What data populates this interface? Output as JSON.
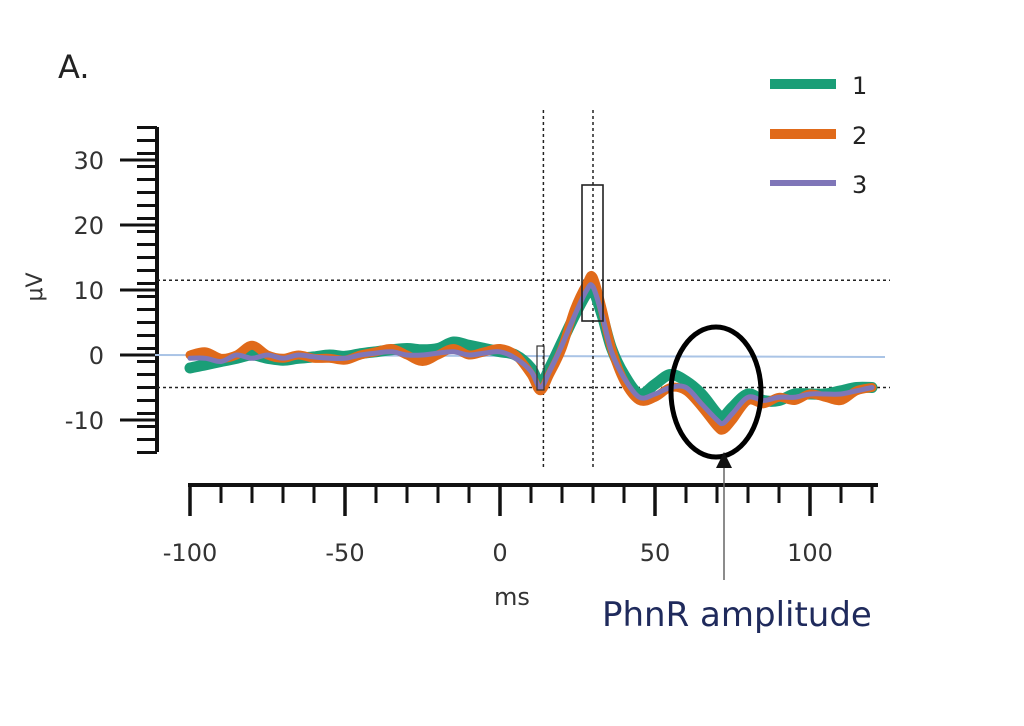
{
  "panel_label": "A.",
  "annotation": {
    "text": "PhnR amplitude",
    "color": "#1f2a5c"
  },
  "legend": [
    {
      "label": "1",
      "color": "#1a9e77"
    },
    {
      "label": "2",
      "color": "#e06a1a"
    },
    {
      "label": "3",
      "color": "#7f76b8"
    }
  ],
  "chart_data": {
    "type": "line",
    "xlabel": "ms",
    "ylabel": "μV",
    "xlim": [
      -100,
      120
    ],
    "ylim": [
      -15,
      35
    ],
    "x_ticks": [
      -100,
      -50,
      0,
      50,
      100
    ],
    "y_ticks": [
      30,
      20,
      10,
      0,
      -10
    ],
    "reference_lines": {
      "vertical_ms": [
        14,
        30
      ],
      "horizontal_uV": [
        11.5,
        -5
      ]
    },
    "baseline_color": "#aac4e6",
    "series": [
      {
        "name": "1",
        "color": "#1a9e77",
        "points": [
          [
            -100,
            -2
          ],
          [
            -95,
            -1.5
          ],
          [
            -90,
            -1
          ],
          [
            -85,
            -0.5
          ],
          [
            -80,
            0
          ],
          [
            -75,
            -0.5
          ],
          [
            -70,
            -0.8
          ],
          [
            -65,
            -0.5
          ],
          [
            -60,
            -0.3
          ],
          [
            -55,
            0
          ],
          [
            -50,
            -0.2
          ],
          [
            -45,
            0.2
          ],
          [
            -40,
            0.5
          ],
          [
            -35,
            0.8
          ],
          [
            -30,
            1
          ],
          [
            -25,
            0.8
          ],
          [
            -20,
            1
          ],
          [
            -15,
            2
          ],
          [
            -10,
            1.5
          ],
          [
            -5,
            1
          ],
          [
            0,
            0.5
          ],
          [
            5,
            0
          ],
          [
            10,
            -2
          ],
          [
            13,
            -4.5
          ],
          [
            16,
            -2
          ],
          [
            20,
            2
          ],
          [
            24,
            6
          ],
          [
            28,
            9.5
          ],
          [
            30,
            10
          ],
          [
            33,
            6
          ],
          [
            36,
            1
          ],
          [
            40,
            -3
          ],
          [
            45,
            -6
          ],
          [
            50,
            -4.5
          ],
          [
            55,
            -3
          ],
          [
            60,
            -4
          ],
          [
            65,
            -6
          ],
          [
            70,
            -9
          ],
          [
            72,
            -9.5
          ],
          [
            75,
            -8
          ],
          [
            80,
            -6
          ],
          [
            85,
            -7
          ],
          [
            90,
            -7
          ],
          [
            95,
            -6
          ],
          [
            100,
            -6
          ],
          [
            105,
            -6
          ],
          [
            110,
            -5.5
          ],
          [
            115,
            -5
          ],
          [
            120,
            -5
          ]
        ]
      },
      {
        "name": "2",
        "color": "#e06a1a",
        "points": [
          [
            -100,
            0
          ],
          [
            -95,
            0.5
          ],
          [
            -90,
            -0.5
          ],
          [
            -85,
            0
          ],
          [
            -80,
            1.5
          ],
          [
            -75,
            0
          ],
          [
            -70,
            -0.5
          ],
          [
            -65,
            0
          ],
          [
            -60,
            -0.5
          ],
          [
            -55,
            -0.5
          ],
          [
            -50,
            -0.8
          ],
          [
            -45,
            0
          ],
          [
            -40,
            0.5
          ],
          [
            -35,
            1
          ],
          [
            -30,
            0
          ],
          [
            -25,
            -1
          ],
          [
            -20,
            0
          ],
          [
            -15,
            1
          ],
          [
            -10,
            0
          ],
          [
            -5,
            0.5
          ],
          [
            0,
            1
          ],
          [
            5,
            0
          ],
          [
            10,
            -3
          ],
          [
            13,
            -5.5
          ],
          [
            16,
            -3
          ],
          [
            20,
            1
          ],
          [
            24,
            7
          ],
          [
            28,
            11
          ],
          [
            30,
            12
          ],
          [
            33,
            7
          ],
          [
            36,
            1
          ],
          [
            40,
            -4
          ],
          [
            45,
            -7
          ],
          [
            50,
            -6.5
          ],
          [
            55,
            -5
          ],
          [
            60,
            -5.5
          ],
          [
            65,
            -8
          ],
          [
            70,
            -11
          ],
          [
            72,
            -11.5
          ],
          [
            75,
            -10
          ],
          [
            80,
            -7
          ],
          [
            85,
            -7.5
          ],
          [
            90,
            -6.5
          ],
          [
            95,
            -7
          ],
          [
            100,
            -6
          ],
          [
            105,
            -6.5
          ],
          [
            110,
            -7
          ],
          [
            115,
            -5.5
          ],
          [
            120,
            -5
          ]
        ]
      },
      {
        "name": "3",
        "color": "#7f76b8",
        "points": [
          [
            -100,
            -0.5
          ],
          [
            -95,
            -0.5
          ],
          [
            -90,
            -1
          ],
          [
            -85,
            0
          ],
          [
            -80,
            -0.5
          ],
          [
            -75,
            0
          ],
          [
            -70,
            -0.5
          ],
          [
            -65,
            0
          ],
          [
            -60,
            -0.3
          ],
          [
            -55,
            -0.5
          ],
          [
            -50,
            -0.5
          ],
          [
            -45,
            0
          ],
          [
            -40,
            0.3
          ],
          [
            -35,
            0.5
          ],
          [
            -30,
            0
          ],
          [
            -25,
            0
          ],
          [
            -20,
            0.3
          ],
          [
            -15,
            0.5
          ],
          [
            -10,
            0
          ],
          [
            -5,
            0.3
          ],
          [
            0,
            0.5
          ],
          [
            5,
            -0.5
          ],
          [
            10,
            -2.5
          ],
          [
            13,
            -5
          ],
          [
            16,
            -2.5
          ],
          [
            20,
            1.5
          ],
          [
            24,
            6
          ],
          [
            28,
            10
          ],
          [
            30,
            10.5
          ],
          [
            33,
            6
          ],
          [
            36,
            0.5
          ],
          [
            40,
            -3.5
          ],
          [
            45,
            -6.5
          ],
          [
            50,
            -6
          ],
          [
            55,
            -5
          ],
          [
            60,
            -5
          ],
          [
            65,
            -7.5
          ],
          [
            70,
            -10
          ],
          [
            72,
            -10.5
          ],
          [
            75,
            -9
          ],
          [
            80,
            -6.5
          ],
          [
            85,
            -7
          ],
          [
            90,
            -6.5
          ],
          [
            95,
            -6.5
          ],
          [
            100,
            -6
          ],
          [
            105,
            -6
          ],
          [
            110,
            -6
          ],
          [
            115,
            -5.5
          ],
          [
            120,
            -5
          ]
        ]
      }
    ]
  }
}
